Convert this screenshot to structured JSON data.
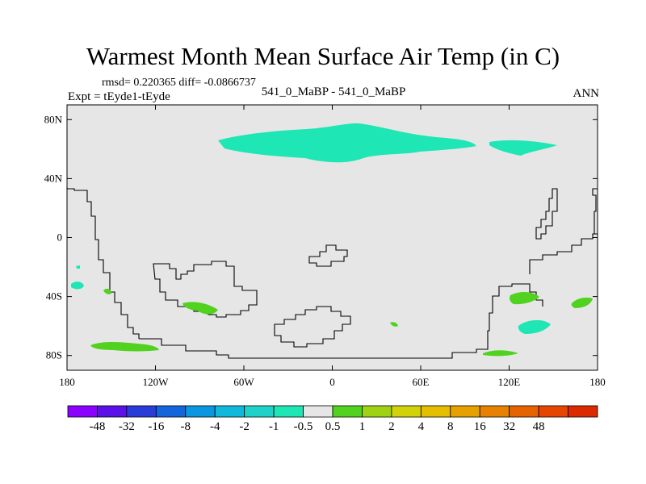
{
  "title": "Warmest Month Mean Surface Air Temp (in C)",
  "stats": "rmsd= 0.220365 diff= -0.0866737",
  "experiment": "Expt = tEyde1-tEyde",
  "center_label": "541_0_MaBP - 541_0_MaBP",
  "season": "ANN",
  "map": {
    "background_color": "#e6e6e6",
    "lon_range": [
      -180,
      180
    ],
    "lat_range": [
      -90,
      90
    ],
    "lat_ticks": [
      {
        "value": 80,
        "label": "80N"
      },
      {
        "value": 40,
        "label": "40N"
      },
      {
        "value": 0,
        "label": "0"
      },
      {
        "value": -40,
        "label": "40S"
      },
      {
        "value": -80,
        "label": "80S"
      }
    ],
    "lon_ticks": [
      {
        "value": -180,
        "label": "180"
      },
      {
        "value": -120,
        "label": "120W"
      },
      {
        "value": -60,
        "label": "60W"
      },
      {
        "value": 0,
        "label": "0"
      },
      {
        "value": 60,
        "label": "60E"
      },
      {
        "value": 120,
        "label": "120E"
      },
      {
        "value": 180,
        "label": "180"
      }
    ]
  },
  "colorbar": {
    "colors": [
      "#8c00ff",
      "#5a10e6",
      "#2a3cd8",
      "#1464dc",
      "#0a96e0",
      "#10b8dc",
      "#1ed2c8",
      "#1ee6b4",
      "#e6e6e6",
      "#50d21e",
      "#a0d214",
      "#d2d20a",
      "#e6be00",
      "#e6a000",
      "#e68200",
      "#e66400",
      "#e64600",
      "#dc2a00"
    ],
    "labels": [
      "-48",
      "-32",
      "-16",
      "-8",
      "-4",
      "-2",
      "-1",
      "-0.5",
      "0.5",
      "1",
      "2",
      "4",
      "8",
      "16",
      "32",
      "48"
    ]
  }
}
